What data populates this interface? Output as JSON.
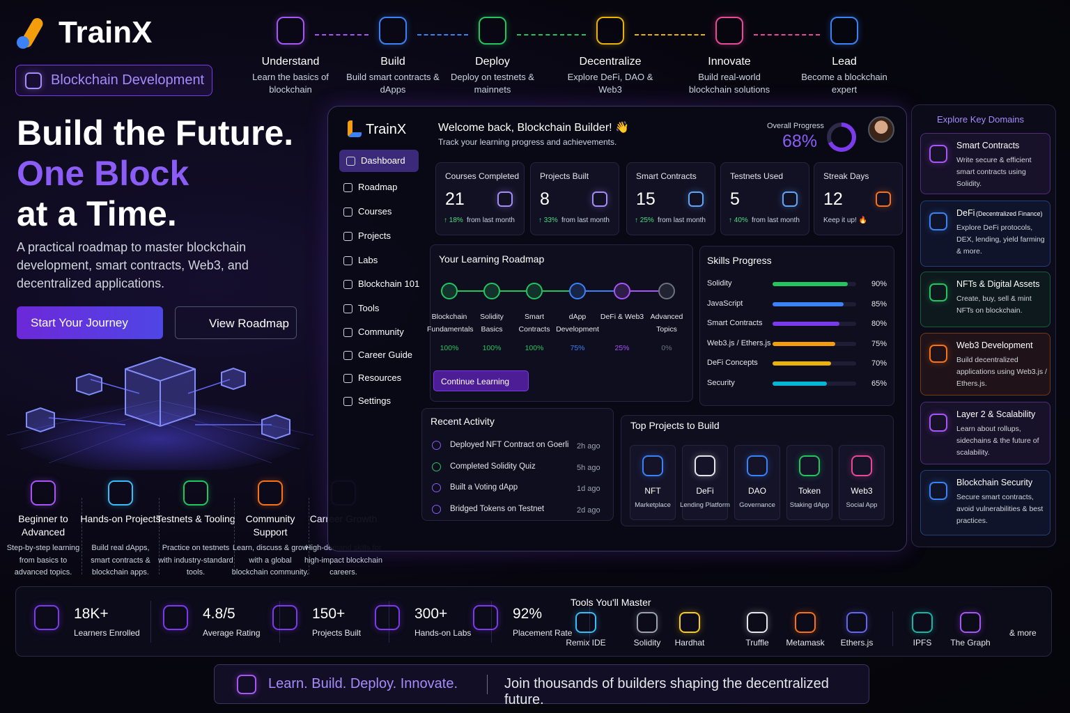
{
  "header": {
    "brand": "TrainX",
    "badge": "Blockchain Development"
  },
  "steps": [
    {
      "title": "Understand",
      "desc": "Learn the basics of blockchain",
      "color": "#a855f7"
    },
    {
      "title": "Build",
      "desc": "Build smart contracts & dApps",
      "color": "#3b82f6"
    },
    {
      "title": "Deploy",
      "desc": "Deploy on testnets & mainnets",
      "color": "#22c55e"
    },
    {
      "title": "Decentralize",
      "desc": "Explore DeFi, DAO & Web3",
      "color": "#eab308"
    },
    {
      "title": "Innovate",
      "desc": "Build real-world blockchain solutions",
      "color": "#ec4899"
    },
    {
      "title": "Lead",
      "desc": "Become a blockchain expert",
      "color": "#3b82f6"
    }
  ],
  "hero": {
    "line1": "Build the Future.",
    "line2": "One Block",
    "line3": "at a Time.",
    "description": "A practical roadmap to master blockchain development, smart contracts, Web3, and decentralized applications.",
    "primary_button": "Start Your Journey",
    "secondary_button": "View Roadmap"
  },
  "features": [
    {
      "title": "Beginner to Advanced",
      "desc": "Step-by-step learning from basics to advanced topics.",
      "color": "#a855f7"
    },
    {
      "title": "Hands-on Projects",
      "desc": "Build real dApps, smart contracts & blockchain apps.",
      "color": "#38bdf8"
    },
    {
      "title": "Testnets & Tooling",
      "desc": "Practice on testnets with industry-standard tools.",
      "color": "#22c55e"
    },
    {
      "title": "Community Support",
      "desc": "Learn, discuss & grow with a global blockchain community.",
      "color": "#f97316"
    },
    {
      "title": "Carreer Growth",
      "desc": "High-demand skills for high-impact blockchain careers.",
      "color": "#a855f7"
    }
  ],
  "dashboard": {
    "brand": "TrainX",
    "nav": [
      "Dashboard",
      "Roadmap",
      "Courses",
      "Projects",
      "Labs",
      "Blockchain 101",
      "Tools",
      "Community",
      "Career Guide",
      "Resources",
      "Settings"
    ],
    "welcome": "Welcome back, Blockchain Builder! 👋",
    "subtitle": "Track your learning progress and achievements.",
    "progress_label": "Overall Progress",
    "progress": {
      "value": 68,
      "label": "68%"
    },
    "stats": [
      {
        "label": "Courses Completed",
        "value": 21,
        "change": "↑ 18%",
        "note": "from last month",
        "color": "#a78bfa"
      },
      {
        "label": "Projects Built",
        "value": 8,
        "change": "↑ 33%",
        "note": "from last month",
        "color": "#a78bfa"
      },
      {
        "label": "Smart Contracts",
        "value": 15,
        "change": "↑ 25%",
        "note": "from last month",
        "color": "#60a5fa"
      },
      {
        "label": "Testnets Used",
        "value": 5,
        "change": "↑ 40%",
        "note": "from last month",
        "color": "#60a5fa"
      },
      {
        "label": "Streak Days",
        "value": 12,
        "note": "Keep it up! 🔥",
        "color": "#f97316"
      }
    ],
    "roadmap": {
      "title": "Your Learning Roadmap",
      "button": "Continue Learning",
      "steps": [
        {
          "name": "Blockchain Fundamentals",
          "progress": "100%",
          "color": "#22c55e"
        },
        {
          "name": "Solidity Basics",
          "progress": "100%",
          "color": "#22c55e"
        },
        {
          "name": "Smart Contracts",
          "progress": "100%",
          "color": "#22c55e"
        },
        {
          "name": "dApp Development",
          "progress": "75%",
          "color": "#3b82f6"
        },
        {
          "name": "DeFi & Web3",
          "progress": "25%",
          "color": "#a855f7"
        },
        {
          "name": "Advanced Topics",
          "progress": "0%",
          "color": "#6b7280"
        }
      ]
    },
    "skills": {
      "title": "Skills Progress",
      "xlim": [
        0,
        100
      ],
      "items": [
        {
          "name": "Solidity",
          "value": 90,
          "label": "90%",
          "color": "#22c55e"
        },
        {
          "name": "JavaScript",
          "value": 85,
          "label": "85%",
          "color": "#3b82f6"
        },
        {
          "name": "Smart Contracts",
          "value": 80,
          "label": "80%",
          "color": "#7c3aed"
        },
        {
          "name": "Web3.js / Ethers.js",
          "value": 75,
          "label": "75%",
          "color": "#f59e0b"
        },
        {
          "name": "DeFi Concepts",
          "value": 70,
          "label": "70%",
          "color": "#eab308"
        },
        {
          "name": "Security",
          "value": 65,
          "label": "65%",
          "color": "#06b6d4"
        }
      ]
    },
    "activity": {
      "title": "Recent Activity",
      "items": [
        {
          "text": "Deployed NFT Contract on Goerli",
          "time": "2h ago"
        },
        {
          "text": "Completed Solidity Quiz",
          "time": "5h ago"
        },
        {
          "text": "Built a Voting dApp",
          "time": "1d ago"
        },
        {
          "text": "Bridged Tokens on Testnet",
          "time": "2d ago"
        }
      ]
    },
    "projects": {
      "title": "Top Projects to Build",
      "items": [
        {
          "name": "NFT",
          "sub": "Marketplace",
          "color": "#3b82f6"
        },
        {
          "name": "DeFi",
          "sub": "Lending Platform",
          "color": "#e5e7eb"
        },
        {
          "name": "DAO",
          "sub": "Governance",
          "color": "#3b82f6"
        },
        {
          "name": "Token",
          "sub": "Staking dApp",
          "color": "#22c55e"
        },
        {
          "name": "Web3",
          "sub": "Social App",
          "color": "#ec4899"
        }
      ]
    }
  },
  "domains": {
    "title": "Explore Key Domains",
    "items": [
      {
        "title": "Smart Contracts",
        "desc": "Write secure & efficient smart contracts using Solidity.",
        "color": "#a855f7"
      },
      {
        "title": "DeFi",
        "sub": "(Decentralized Finance)",
        "desc": "Explore DeFi protocols, DEX, lending, yield farming & more.",
        "color": "#3b82f6"
      },
      {
        "title": "NFTs & Digital Assets",
        "desc": "Create, buy, sell & mint NFTs on blockchain.",
        "color": "#22c55e"
      },
      {
        "title": "Web3 Development",
        "desc": "Build decentralized applications using Web3.js / Ethers.js.",
        "color": "#f97316"
      },
      {
        "title": "Layer 2 & Scalability",
        "desc": "Learn about rollups, sidechains & the future of scalability.",
        "color": "#a855f7"
      },
      {
        "title": "Blockchain Security",
        "desc": "Secure smart contracts, avoid vulnerabilities & best practices.",
        "color": "#3b82f6"
      }
    ]
  },
  "metrics": [
    {
      "value": "18K+",
      "label": "Learners Enrolled"
    },
    {
      "value": "4.8/5",
      "label": "Average Rating"
    },
    {
      "value": "150+",
      "label": "Projects Built"
    },
    {
      "value": "300+",
      "label": "Hands-on Labs"
    },
    {
      "value": "92%",
      "label": "Placement Rate"
    }
  ],
  "tools": {
    "title": "Tools You'll Master",
    "items": [
      "Remix IDE",
      "Solidity",
      "Hardhat",
      "Truffle",
      "Metamask",
      "Ethers.js",
      "IPFS",
      "The Graph"
    ],
    "more": "& more"
  },
  "footer": {
    "tagline": "Learn. Build. Deploy. Innovate.",
    "text": "Join thousands of builders shaping the decentralized future."
  }
}
